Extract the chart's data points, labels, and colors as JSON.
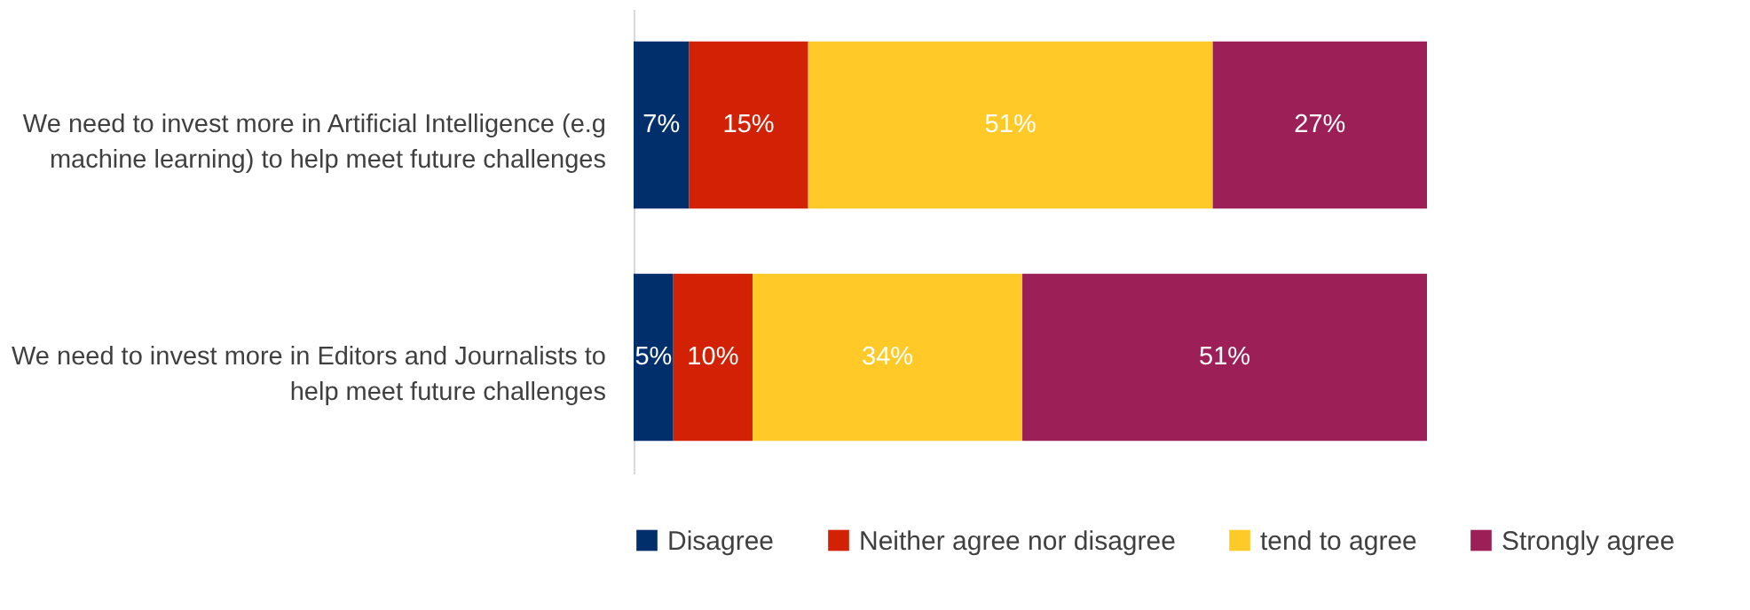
{
  "chart_data": {
    "type": "bar",
    "orientation": "horizontal",
    "stacked": true,
    "legend": "bottom",
    "grid": false,
    "tick_labels": "y",
    "categories": [
      "We need to invest more in Artificial Intelligence (e.g machine learning) to help meet future challenges",
      "We need to invest more in Editors and Journalists to help meet future challenges"
    ],
    "series": [
      {
        "name": "Disagree",
        "color": "#002f6c",
        "values": [
          7,
          5
        ],
        "value_labels": [
          "7%",
          "5%"
        ]
      },
      {
        "name": "Neither agree nor disagree",
        "color": "#d22104",
        "values": [
          15,
          10
        ],
        "value_labels": [
          "15%",
          "10%"
        ]
      },
      {
        "name": "tend to agree",
        "color": "#ffca28",
        "values": [
          51,
          34
        ],
        "value_labels": [
          "51%",
          "34%"
        ]
      },
      {
        "name": "Strongly agree",
        "color": "#9d1f58",
        "values": [
          27,
          51
        ],
        "value_labels": [
          "27%",
          "51%"
        ]
      }
    ]
  }
}
